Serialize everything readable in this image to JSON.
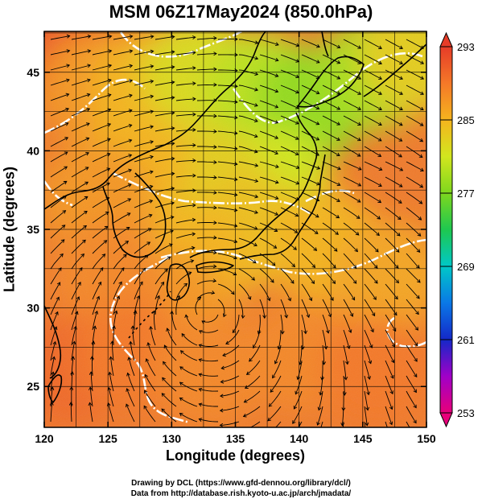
{
  "title": "MSM 06Z17May2024 (850.0hPa)",
  "credits": {
    "line1": "Drawing by DCL (https://www.gfd-dennou.org/library/dcl/)",
    "line2": "Data from http://database.rish.kyoto-u.ac.jp/arch/jmadata/"
  },
  "chart_data": {
    "type": "heatmap",
    "title": "MSM 06Z17May2024 (850.0hPa)",
    "xlabel": "Longitude (degrees)",
    "ylabel": "Latitude  (degrees)",
    "xlim": [
      120,
      150
    ],
    "ylim": [
      22.4,
      47.6
    ],
    "x_ticks": [
      120,
      125,
      130,
      135,
      140,
      145,
      150
    ],
    "y_ticks": [
      25,
      30,
      35,
      40,
      45
    ],
    "grid": true,
    "overlays": [
      "streamlines",
      "coastlines",
      "white contour lines"
    ],
    "colorbar": {
      "ticks": [
        293,
        285,
        277,
        269,
        261,
        253
      ],
      "range": [
        253,
        293
      ],
      "placement": "right",
      "colors": [
        "#e8007a",
        "#a000c8",
        "#1428c8",
        "#0a78e6",
        "#00c8c8",
        "#1ec850",
        "#7ed71e",
        "#d2e61e",
        "#f5b41e",
        "#f57828",
        "#e63c28"
      ]
    },
    "temperature_field_K": [
      {
        "lon": 121,
        "lat": 47,
        "value": 291
      },
      {
        "lon": 124,
        "lat": 44,
        "value": 287
      },
      {
        "lon": 128,
        "lat": 44,
        "value": 285
      },
      {
        "lon": 132,
        "lat": 45,
        "value": 282
      },
      {
        "lon": 137,
        "lat": 44,
        "value": 280
      },
      {
        "lon": 141,
        "lat": 43,
        "value": 278
      },
      {
        "lon": 146,
        "lat": 45,
        "value": 279
      },
      {
        "lon": 149,
        "lat": 46,
        "value": 283
      },
      {
        "lon": 138,
        "lat": 38,
        "value": 281
      },
      {
        "lon": 133,
        "lat": 38,
        "value": 283
      },
      {
        "lon": 127,
        "lat": 39,
        "value": 285
      },
      {
        "lon": 124,
        "lat": 37,
        "value": 287
      },
      {
        "lon": 136,
        "lat": 35,
        "value": 284
      },
      {
        "lon": 132,
        "lat": 33,
        "value": 285
      },
      {
        "lon": 130,
        "lat": 30,
        "value": 287
      },
      {
        "lon": 142,
        "lat": 34,
        "value": 285
      },
      {
        "lon": 147,
        "lat": 32,
        "value": 286
      },
      {
        "lon": 125,
        "lat": 32,
        "value": 288
      },
      {
        "lon": 122,
        "lat": 26,
        "value": 290
      },
      {
        "lon": 127,
        "lat": 27,
        "value": 289
      },
      {
        "lon": 133,
        "lat": 26,
        "value": 288
      },
      {
        "lon": 140,
        "lat": 27,
        "value": 288
      },
      {
        "lon": 146,
        "lat": 26,
        "value": 289
      }
    ]
  }
}
